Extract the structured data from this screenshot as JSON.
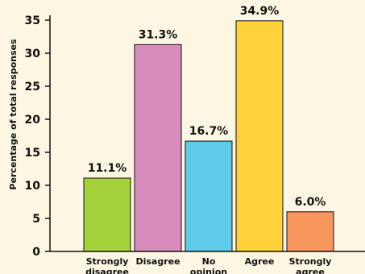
{
  "chart_data": {
    "type": "bar",
    "title": "",
    "xlabel": "",
    "ylabel": "Percentage of total responses",
    "ylim": [
      0,
      35
    ],
    "yticks": [
      0,
      5,
      10,
      15,
      20,
      25,
      30,
      35
    ],
    "grid": false,
    "legend": "none",
    "categories": [
      [
        "Strongly",
        "disagree"
      ],
      [
        "Disagree"
      ],
      [
        "No",
        "opinion"
      ],
      [
        "Agree"
      ],
      [
        "Strongly",
        "agree"
      ]
    ],
    "values": [
      11.1,
      31.3,
      16.7,
      34.9,
      6.0
    ],
    "data_labels": [
      "11.1%",
      "31.3%",
      "16.7%",
      "34.9%",
      "6.0%"
    ],
    "colors": [
      "#a4d23a",
      "#d88bbd",
      "#5ecbea",
      "#ffd23c",
      "#f6955c"
    ],
    "background": "#fdf6e3"
  }
}
